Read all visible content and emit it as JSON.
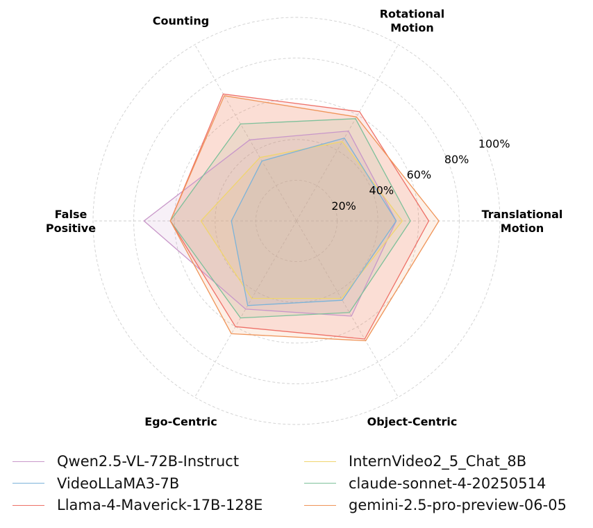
{
  "chart_data": {
    "type": "radar",
    "axes": [
      "Translational\nMotion",
      "Rotational\nMotion",
      "Counting",
      "False\nPositive",
      "Ego-Centric",
      "Object-Centric"
    ],
    "r_ticks": [
      "20%",
      "40%",
      "60%",
      "80%",
      "100%"
    ],
    "r_tick_values": [
      20,
      40,
      60,
      80,
      100
    ],
    "rlim": [
      0,
      100
    ],
    "grid": true,
    "legend_position": "bottom",
    "series": [
      {
        "name": "Qwen2.5-VL-72B-Instruct",
        "color": "#c897c9",
        "values": [
          49,
          51,
          46,
          75,
          50,
          54
        ]
      },
      {
        "name": "InternVideo2_5_Chat_8B",
        "color": "#f0d56e",
        "values": [
          52,
          45,
          36,
          47,
          44,
          44
        ]
      },
      {
        "name": "VideoLLaMA3-7B",
        "color": "#7cb3d9",
        "values": [
          49,
          47,
          34,
          32,
          48,
          45
        ]
      },
      {
        "name": "claude-sonnet-4-20250514",
        "color": "#7dc09a",
        "values": [
          56,
          58,
          55,
          62,
          55,
          52
        ]
      },
      {
        "name": "Llama-4-Maverick-17B-128E",
        "color": "#ee7067",
        "values": [
          65,
          62,
          72,
          62,
          60,
          67
        ]
      },
      {
        "name": "gemini-2.5-pro-preview-06-05",
        "color": "#ef9458",
        "values": [
          70,
          59,
          71,
          62,
          64,
          68
        ]
      }
    ]
  }
}
